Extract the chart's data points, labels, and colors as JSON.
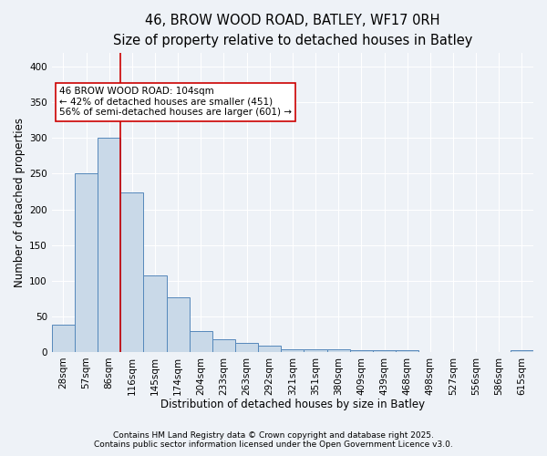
{
  "title1": "46, BROW WOOD ROAD, BATLEY, WF17 0RH",
  "title2": "Size of property relative to detached houses in Batley",
  "xlabel": "Distribution of detached houses by size in Batley",
  "ylabel": "Number of detached properties",
  "bar_labels": [
    "28sqm",
    "57sqm",
    "86sqm",
    "116sqm",
    "145sqm",
    "174sqm",
    "204sqm",
    "233sqm",
    "263sqm",
    "292sqm",
    "321sqm",
    "351sqm",
    "380sqm",
    "409sqm",
    "439sqm",
    "468sqm",
    "498sqm",
    "527sqm",
    "556sqm",
    "586sqm",
    "615sqm"
  ],
  "bar_values": [
    38,
    250,
    300,
    224,
    107,
    77,
    29,
    18,
    12,
    9,
    4,
    4,
    4,
    3,
    3,
    3,
    0,
    0,
    0,
    0,
    3
  ],
  "bar_color": "#c9d9e8",
  "bar_edge_color": "#5588bb",
  "vline_color": "#cc0000",
  "vline_x": 2.5,
  "annotation_text": "46 BROW WOOD ROAD: 104sqm\n← 42% of detached houses are smaller (451)\n56% of semi-detached houses are larger (601) →",
  "annotation_box_color": "#ffffff",
  "annotation_box_edge_color": "#cc0000",
  "ylim": [
    0,
    420
  ],
  "yticks": [
    0,
    50,
    100,
    150,
    200,
    250,
    300,
    350,
    400
  ],
  "footnote1": "Contains HM Land Registry data © Crown copyright and database right 2025.",
  "footnote2": "Contains public sector information licensed under the Open Government Licence v3.0.",
  "bg_color": "#eef2f7",
  "plot_bg_color": "#eef2f7",
  "grid_color": "#ffffff",
  "title_fontsize": 10.5,
  "subtitle_fontsize": 9.5,
  "axis_label_fontsize": 8.5,
  "tick_fontsize": 7.5,
  "footnote_fontsize": 6.5,
  "annotation_fontsize": 7.5
}
